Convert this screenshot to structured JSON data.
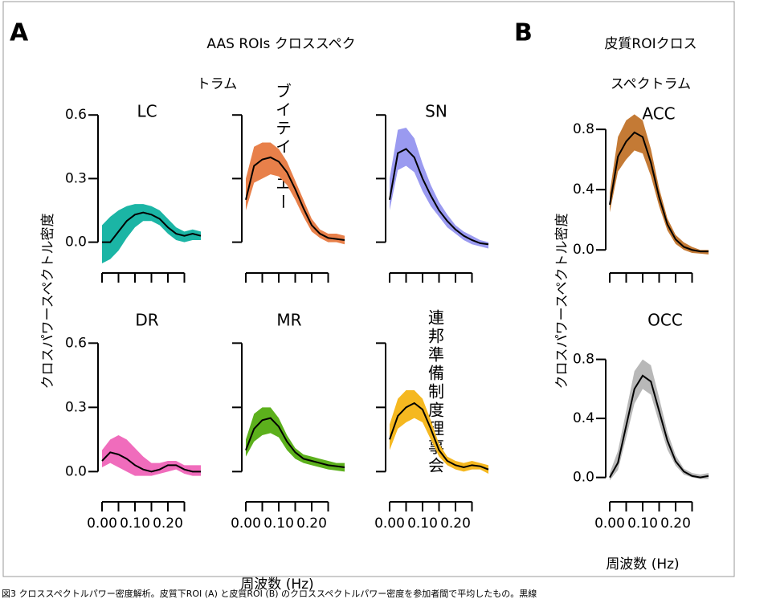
{
  "panel_a": {
    "label": "A",
    "title": "AAS ROIs クロススペクトラム",
    "ylabel": "クロスパワースペクトル密度",
    "xlabel": "周波数 (Hz)"
  },
  "panel_b": {
    "label": "B",
    "title": "皮質ROIクロススペクトラム",
    "ylabel": "クロスパワースペクトル密度",
    "xlabel": "周波数 (Hz)"
  },
  "caption": "図3 クロススペクトルパワー密度解析。皮質下ROI (A) と皮質ROI (B) のクロススペクトルパワー密度を参加者間で平均したもの。黒線",
  "chart_data": [
    {
      "type": "line",
      "title": "LC",
      "x": [
        0,
        0.025,
        0.05,
        0.075,
        0.1,
        0.125,
        0.15,
        0.175,
        0.2,
        0.225,
        0.25,
        0.275,
        0.3
      ],
      "xlim": [
        0,
        0.3
      ],
      "ylim": [
        -0.1,
        0.65
      ],
      "xticks": [
        0,
        0.05,
        0.1,
        0.15,
        0.2,
        0.25
      ],
      "yticks": [
        {
          "value": 0,
          "label": "0.0"
        },
        {
          "value": 0.3,
          "label": "0.3"
        },
        {
          "value": 0.6,
          "label": "0.6"
        }
      ],
      "mean": {
        "color": "#000000",
        "values": [
          0,
          0,
          0.05,
          0.1,
          0.13,
          0.14,
          0.13,
          0.11,
          0.07,
          0.04,
          0.03,
          0.04,
          0.03
        ]
      },
      "band": {
        "color": "#1bb5a5",
        "upper": [
          0.08,
          0.12,
          0.15,
          0.17,
          0.18,
          0.18,
          0.17,
          0.15,
          0.11,
          0.07,
          0.05,
          0.06,
          0.05
        ],
        "lower": [
          -0.1,
          -0.08,
          -0.04,
          0.02,
          0.07,
          0.1,
          0.1,
          0.08,
          0.04,
          0.01,
          0,
          0.01,
          0.01
        ]
      }
    },
    {
      "type": "line",
      "title": "ブイテイーエー",
      "x": [
        0,
        0.025,
        0.05,
        0.075,
        0.1,
        0.125,
        0.15,
        0.175,
        0.2,
        0.225,
        0.25,
        0.275,
        0.3
      ],
      "xlim": [
        0,
        0.3
      ],
      "ylim": [
        -0.1,
        0.65
      ],
      "xticks": [
        0,
        0.05,
        0.1,
        0.15,
        0.2,
        0.25
      ],
      "yticks": [
        0,
        0.3,
        0.6
      ],
      "mean": {
        "color": "#000000",
        "values": [
          0.2,
          0.36,
          0.39,
          0.4,
          0.38,
          0.33,
          0.25,
          0.16,
          0.08,
          0.04,
          0.02,
          0.015,
          0.01
        ]
      },
      "band": {
        "color": "#e8804a",
        "upper": [
          0.3,
          0.45,
          0.47,
          0.47,
          0.44,
          0.38,
          0.29,
          0.2,
          0.11,
          0.06,
          0.04,
          0.04,
          0.03
        ],
        "lower": [
          0.15,
          0.28,
          0.3,
          0.32,
          0.31,
          0.27,
          0.2,
          0.12,
          0.05,
          0.02,
          0,
          0,
          -0.01
        ]
      }
    },
    {
      "type": "line",
      "title": "SN",
      "x": [
        0,
        0.025,
        0.05,
        0.075,
        0.1,
        0.125,
        0.15,
        0.175,
        0.2,
        0.225,
        0.25,
        0.275,
        0.3
      ],
      "xlim": [
        0,
        0.3
      ],
      "ylim": [
        -0.1,
        0.65
      ],
      "xticks": [
        0,
        0.05,
        0.1,
        0.15,
        0.2,
        0.25
      ],
      "yticks": [
        0,
        0.3,
        0.6
      ],
      "mean": {
        "color": "#000000",
        "values": [
          0.2,
          0.42,
          0.44,
          0.4,
          0.3,
          0.22,
          0.15,
          0.1,
          0.06,
          0.03,
          0.01,
          -0.005,
          -0.01
        ]
      },
      "band": {
        "color": "#9a9af0",
        "upper": [
          0.3,
          0.53,
          0.54,
          0.49,
          0.37,
          0.27,
          0.19,
          0.13,
          0.08,
          0.05,
          0.03,
          0.01,
          0
        ],
        "lower": [
          0.15,
          0.34,
          0.36,
          0.33,
          0.24,
          0.17,
          0.12,
          0.07,
          0.04,
          0.01,
          -0.01,
          -0.02,
          -0.03
        ]
      }
    },
    {
      "type": "line",
      "title": "DR",
      "x": [
        0,
        0.025,
        0.05,
        0.075,
        0.1,
        0.125,
        0.15,
        0.175,
        0.2,
        0.225,
        0.25,
        0.275,
        0.3
      ],
      "xlim": [
        0,
        0.3
      ],
      "ylim": [
        -0.1,
        0.65
      ],
      "xticks": [
        {
          "value": 0,
          "label": "0.00"
        },
        0.05,
        {
          "value": 0.1,
          "label": "0.10"
        },
        0.15,
        {
          "value": 0.2,
          "label": "0.20"
        },
        0.25
      ],
      "yticks": [
        {
          "value": 0,
          "label": "0.0"
        },
        {
          "value": 0.3,
          "label": "0.3"
        },
        {
          "value": 0.6,
          "label": "0.6"
        }
      ],
      "mean": {
        "color": "#000000",
        "values": [
          0.05,
          0.09,
          0.08,
          0.06,
          0.03,
          0.01,
          0,
          0.01,
          0.03,
          0.03,
          0.01,
          0,
          0
        ]
      },
      "band": {
        "color": "#f06cbc",
        "upper": [
          0.1,
          0.15,
          0.17,
          0.15,
          0.11,
          0.07,
          0.04,
          0.04,
          0.05,
          0.05,
          0.03,
          0.03,
          0.03
        ],
        "lower": [
          0.02,
          0.04,
          0.02,
          0,
          -0.02,
          -0.02,
          -0.02,
          -0.01,
          0,
          0.01,
          -0.01,
          -0.02,
          -0.02
        ]
      }
    },
    {
      "type": "line",
      "title": "MR",
      "x": [
        0,
        0.025,
        0.05,
        0.075,
        0.1,
        0.125,
        0.15,
        0.175,
        0.2,
        0.225,
        0.25,
        0.275,
        0.3
      ],
      "xlim": [
        0,
        0.3
      ],
      "ylim": [
        -0.1,
        0.65
      ],
      "xticks": [
        {
          "value": 0,
          "label": "0.00"
        },
        0.05,
        {
          "value": 0.1,
          "label": "0.10"
        },
        0.15,
        {
          "value": 0.2,
          "label": "0.20"
        },
        0.25
      ],
      "yticks": [
        0,
        0.3,
        0.6
      ],
      "mean": {
        "color": "#000000",
        "values": [
          0.1,
          0.2,
          0.24,
          0.25,
          0.21,
          0.14,
          0.09,
          0.06,
          0.05,
          0.04,
          0.03,
          0.025,
          0.02
        ]
      },
      "band": {
        "color": "#5cb01c",
        "upper": [
          0.15,
          0.27,
          0.3,
          0.3,
          0.25,
          0.17,
          0.11,
          0.08,
          0.07,
          0.06,
          0.05,
          0.04,
          0.04
        ],
        "lower": [
          0.07,
          0.14,
          0.17,
          0.18,
          0.16,
          0.1,
          0.06,
          0.04,
          0.03,
          0.02,
          0.01,
          0.005,
          0
        ]
      }
    },
    {
      "type": "line",
      "title": "連邦準備制度理事会",
      "x": [
        0,
        0.025,
        0.05,
        0.075,
        0.1,
        0.125,
        0.15,
        0.175,
        0.2,
        0.225,
        0.25,
        0.275,
        0.3
      ],
      "xlim": [
        0,
        0.3
      ],
      "ylim": [
        -0.1,
        0.65
      ],
      "xticks": [
        {
          "value": 0,
          "label": "0.00"
        },
        0.05,
        {
          "value": 0.1,
          "label": "0.10"
        },
        0.15,
        {
          "value": 0.2,
          "label": "0.20"
        },
        0.25
      ],
      "yticks": [
        0,
        0.3,
        0.6
      ],
      "mean": {
        "color": "#000000",
        "values": [
          0.15,
          0.26,
          0.3,
          0.32,
          0.29,
          0.2,
          0.1,
          0.05,
          0.03,
          0.02,
          0.03,
          0.025,
          0.01
        ]
      },
      "band": {
        "color": "#f5b820",
        "upper": [
          0.22,
          0.34,
          0.38,
          0.38,
          0.34,
          0.24,
          0.13,
          0.07,
          0.05,
          0.04,
          0.05,
          0.04,
          0.03
        ],
        "lower": [
          0.1,
          0.2,
          0.23,
          0.25,
          0.23,
          0.15,
          0.07,
          0.03,
          0.01,
          0,
          0.01,
          0.01,
          -0.01
        ]
      }
    },
    {
      "type": "line",
      "title": "ACC",
      "x": [
        0,
        0.025,
        0.05,
        0.075,
        0.1,
        0.125,
        0.15,
        0.175,
        0.2,
        0.225,
        0.25,
        0.275,
        0.3
      ],
      "xlim": [
        0,
        0.3
      ],
      "ylim": [
        -0.1,
        0.95
      ],
      "xticks": [
        0,
        0.05,
        0.1,
        0.15,
        0.2,
        0.25
      ],
      "yticks": [
        {
          "value": 0,
          "label": "0.0"
        },
        {
          "value": 0.4,
          "label": "0.4"
        },
        {
          "value": 0.8,
          "label": "0.8"
        }
      ],
      "mean": {
        "color": "#000000",
        "values": [
          0.3,
          0.62,
          0.72,
          0.78,
          0.75,
          0.58,
          0.35,
          0.17,
          0.07,
          0.02,
          0,
          -0.01,
          -0.01
        ]
      },
      "band": {
        "color": "#c47a35",
        "upper": [
          0.38,
          0.75,
          0.86,
          0.9,
          0.86,
          0.67,
          0.41,
          0.21,
          0.1,
          0.05,
          0.02,
          0,
          0
        ],
        "lower": [
          0.25,
          0.52,
          0.6,
          0.66,
          0.64,
          0.49,
          0.29,
          0.13,
          0.04,
          0,
          -0.02,
          -0.025,
          -0.03
        ]
      }
    },
    {
      "type": "line",
      "title": "OCC",
      "x": [
        0,
        0.025,
        0.05,
        0.075,
        0.1,
        0.125,
        0.15,
        0.175,
        0.2,
        0.225,
        0.25,
        0.275,
        0.3
      ],
      "xlim": [
        0,
        0.3
      ],
      "ylim": [
        -0.1,
        0.95
      ],
      "xticks": [
        {
          "value": 0,
          "label": "0.00"
        },
        0.05,
        {
          "value": 0.1,
          "label": "0.10"
        },
        0.15,
        {
          "value": 0.2,
          "label": "0.20"
        },
        0.25
      ],
      "yticks": [
        {
          "value": 0,
          "label": "0.0"
        },
        {
          "value": 0.4,
          "label": "0.4"
        },
        {
          "value": 0.8,
          "label": "0.8"
        }
      ],
      "mean": {
        "color": "#000000",
        "values": [
          0,
          0.1,
          0.35,
          0.6,
          0.69,
          0.65,
          0.45,
          0.25,
          0.11,
          0.04,
          0.01,
          0,
          0.01
        ]
      },
      "band": {
        "color": "#b8b8b8",
        "upper": [
          0.03,
          0.18,
          0.45,
          0.72,
          0.8,
          0.76,
          0.54,
          0.31,
          0.15,
          0.06,
          0.03,
          0.02,
          0.03
        ],
        "lower": [
          -0.02,
          0.05,
          0.27,
          0.5,
          0.6,
          0.56,
          0.37,
          0.19,
          0.08,
          0.02,
          0,
          -0.01,
          -0.01
        ]
      }
    }
  ]
}
